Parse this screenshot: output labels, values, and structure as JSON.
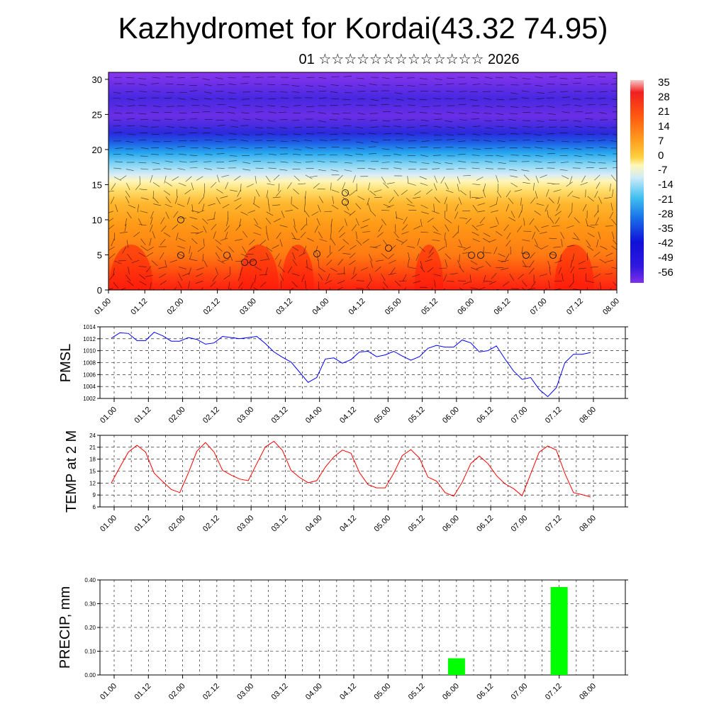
{
  "title": "Kazhydromet for Kordai(43.32 74.95)",
  "subtitle": "01 ☆☆☆☆☆☆☆☆☆☆☆☆☆ 2026",
  "colors": {
    "pmsl_line": "#0000ff",
    "temp_line": "#ff0000",
    "precip_bar": "#00ff00"
  },
  "chart_data": [
    {
      "type": "heatmap",
      "title": "",
      "x_ticks": [
        "01.00",
        "01.12",
        "02.00",
        "02.12",
        "03.00",
        "03.12",
        "04.00",
        "04.12",
        "05.00",
        "05.12",
        "06.00",
        "06.12",
        "07.00",
        "07.12",
        "08.00"
      ],
      "y_ticks": [
        0,
        5,
        10,
        15,
        20,
        25,
        30
      ],
      "ylim": [
        0,
        31
      ],
      "colorbar_labels": [
        "35",
        "28",
        "21",
        "14",
        "7",
        "0",
        "-7",
        "-14",
        "-21",
        "-28",
        "-35",
        "-42",
        "-49",
        "-56"
      ],
      "colorbar_range": [
        -63,
        38
      ],
      "overlay": "wind barbs",
      "description_levels": [
        {
          "level": 0,
          "value": 20
        },
        {
          "level": 5,
          "value": 14
        },
        {
          "level": 10,
          "value": 6
        },
        {
          "level": 14,
          "value": 0
        },
        {
          "level": 16,
          "value": -7
        },
        {
          "level": 19,
          "value": -28
        },
        {
          "level": 22,
          "value": -56
        },
        {
          "level": 26,
          "value": -52
        },
        {
          "level": 31,
          "value": -50
        }
      ]
    },
    {
      "type": "line",
      "ylabel": "PMSL",
      "x_ticks": [
        "01.00",
        "01.12",
        "02.00",
        "02.12",
        "03.00",
        "03.12",
        "04.00",
        "04.12",
        "05.00",
        "05.12",
        "06.00",
        "06.12",
        "07.00",
        "07.12",
        "08.00"
      ],
      "y_ticks": [
        "1002",
        "1004",
        "1006",
        "1008",
        "1010",
        "1012",
        "1014"
      ],
      "ylim": [
        1002,
        1014
      ],
      "series": [
        {
          "values": [
            1012.1,
            1013.0,
            1012.9,
            1011.7,
            1011.7,
            1013.1,
            1012.5,
            1011.6,
            1011.6,
            1012.2,
            1011.9,
            1011.1,
            1011.3,
            1012.4,
            1012.2,
            1012.0,
            1012.2,
            1012.4,
            1011.2,
            1009.8,
            1008.9,
            1008.1,
            1006.4,
            1004.7,
            1005.5,
            1008.6,
            1008.8,
            1007.9,
            1008.5,
            1009.8,
            1009.9,
            1009.0,
            1009.3,
            1009.9,
            1009.1,
            1008.4,
            1009.0,
            1010.4,
            1010.9,
            1010.6,
            1010.6,
            1011.8,
            1011.3,
            1009.8,
            1010.0,
            1010.8,
            1008.6,
            1006.6,
            1005.2,
            1005.5,
            1003.5,
            1002.3,
            1003.8,
            1008.0,
            1009.4,
            1009.4,
            1009.7
          ]
        }
      ]
    },
    {
      "type": "line",
      "ylabel": "TEMP at 2 M",
      "x_ticks": [
        "01.00",
        "01.12",
        "02.00",
        "02.12",
        "03.00",
        "03.12",
        "04.00",
        "04.12",
        "05.00",
        "05.12",
        "06.00",
        "06.12",
        "07.00",
        "07.12",
        "08.00"
      ],
      "y_ticks": [
        "6",
        "9",
        "12",
        "15",
        "18",
        "21",
        "24"
      ],
      "ylim": [
        6,
        24
      ],
      "series": [
        {
          "values": [
            12.0,
            16.0,
            19.8,
            21.5,
            19.8,
            14.5,
            12.4,
            10.4,
            9.6,
            14.5,
            20.0,
            22.2,
            19.8,
            15.2,
            14.0,
            13.0,
            12.6,
            16.9,
            21.1,
            22.5,
            20.2,
            15.2,
            13.4,
            12.1,
            12.6,
            16.0,
            18.6,
            20.3,
            19.5,
            14.6,
            11.6,
            10.8,
            10.8,
            14.5,
            18.9,
            20.4,
            18.3,
            13.5,
            12.5,
            9.6,
            8.7,
            12.2,
            16.9,
            18.8,
            16.9,
            13.9,
            11.8,
            10.6,
            8.8,
            14.3,
            19.8,
            21.3,
            20.3,
            14.4,
            9.6,
            9.1,
            8.5
          ]
        }
      ]
    },
    {
      "type": "bar",
      "ylabel": "PRECIP, mm",
      "x_ticks": [
        "01.00",
        "01.12",
        "02.00",
        "02.12",
        "03.00",
        "03.12",
        "04.00",
        "04.12",
        "05.00",
        "05.12",
        "06.00",
        "06.12",
        "07.00",
        "07.12",
        "08.00"
      ],
      "y_ticks": [
        "0.00",
        "0.10",
        "0.20",
        "0.30",
        "0.40"
      ],
      "ylim": [
        0,
        0.4
      ],
      "bars": [
        {
          "at": "06.00",
          "value": 0.07
        },
        {
          "at": "07.12",
          "value": 0.37
        }
      ]
    }
  ]
}
